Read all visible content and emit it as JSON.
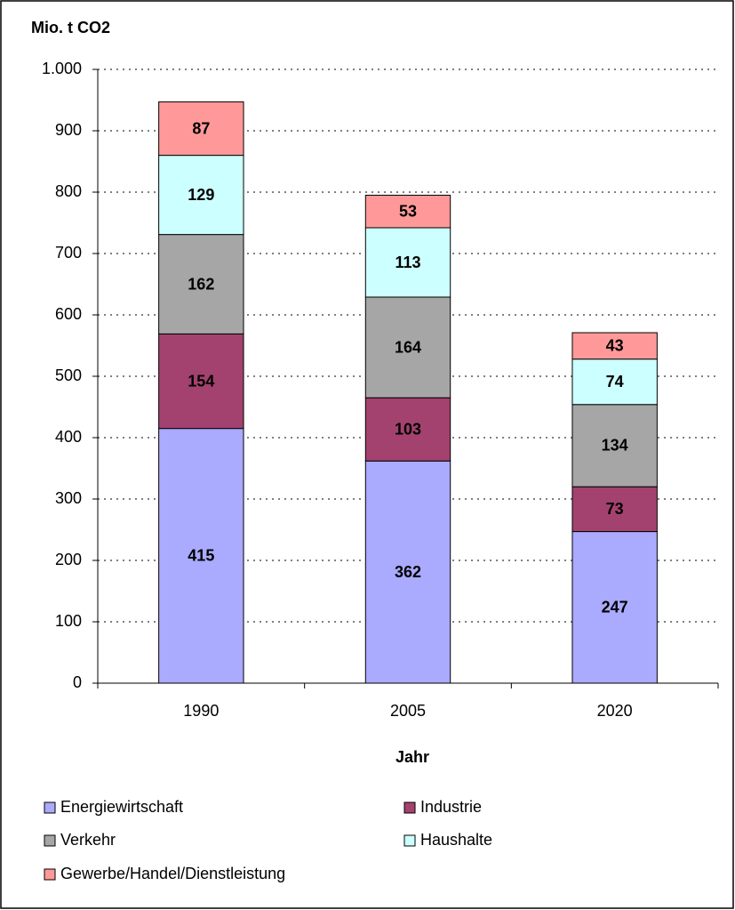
{
  "chart_data": {
    "type": "stacked_bar",
    "title": "Mio. t  CO2",
    "x_label": "Jahr",
    "categories": [
      "1990",
      "2005",
      "2020"
    ],
    "series": [
      {
        "name": "Energiewirtschaft",
        "color": "#aaaaff",
        "values": [
          415,
          362,
          247
        ]
      },
      {
        "name": "Industrie",
        "color": "#a3426f",
        "values": [
          154,
          103,
          73
        ]
      },
      {
        "name": "Verkehr",
        "color": "#a6a6a6",
        "values": [
          162,
          164,
          134
        ]
      },
      {
        "name": "Haushalte",
        "color": "#ccffff",
        "values": [
          129,
          113,
          74
        ]
      },
      {
        "name": "Gewerbe/Handel/Dienstleistung",
        "color": "#ff9999",
        "values": [
          87,
          53,
          43
        ]
      }
    ],
    "ylim": [
      0,
      1000
    ],
    "yticks": [
      0,
      100,
      200,
      300,
      400,
      500,
      600,
      700,
      800,
      900,
      {
        "value": 1000,
        "label": "1.000"
      }
    ],
    "grid": true
  }
}
